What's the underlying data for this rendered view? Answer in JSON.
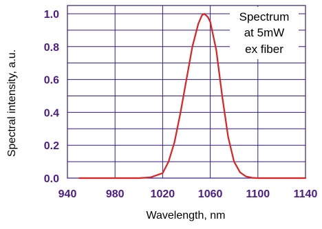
{
  "chart_data": {
    "type": "line",
    "xlabel": "Wavelength, nm",
    "ylabel": "Spectral intensity, a.u.",
    "xlim": [
      940,
      1140
    ],
    "ylim": [
      0.0,
      1.05
    ],
    "xticks": [
      940,
      980,
      1020,
      1060,
      1100,
      1140
    ],
    "xtick_labels": [
      "940",
      "980",
      "1020",
      "1060",
      "1100",
      "1140"
    ],
    "yticks": [
      0.0,
      0.2,
      0.4,
      0.6,
      0.8,
      1.0
    ],
    "ytick_labels": [
      "0.0",
      "0.2",
      "0.4",
      "0.6",
      "0.8",
      "1.0"
    ],
    "grid": true,
    "annotation": [
      "Spectrum",
      "at 5mW",
      "ex fiber"
    ],
    "series": [
      {
        "color": "#e02020",
        "x": [
          950,
          960,
          970,
          980,
          990,
          1000,
          1010,
          1020,
          1025,
          1030,
          1035,
          1040,
          1045,
          1050,
          1053,
          1055,
          1058,
          1060,
          1065,
          1070,
          1075,
          1080,
          1085,
          1090,
          1095,
          1100,
          1110,
          1120,
          1130,
          1140
        ],
        "y": [
          0.0,
          0.0,
          0.0,
          0.0,
          0.0,
          0.0,
          0.005,
          0.03,
          0.1,
          0.22,
          0.4,
          0.6,
          0.8,
          0.94,
          0.99,
          1.0,
          0.98,
          0.95,
          0.78,
          0.5,
          0.25,
          0.1,
          0.035,
          0.01,
          0.002,
          0.0,
          0.0,
          0.0,
          0.0,
          0.0
        ]
      }
    ]
  },
  "colors": {
    "axis_label": "#4b1b8a",
    "grid": "#2c1a8a",
    "series": "#e02020",
    "background": "#ffffff"
  }
}
